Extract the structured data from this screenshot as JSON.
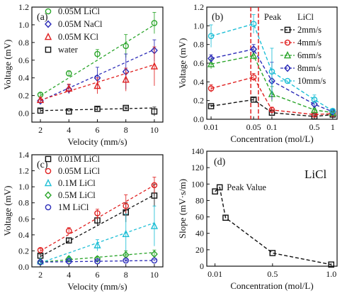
{
  "figure": {
    "panels": [
      {
        "label": "(a)",
        "chart_data": {
          "type": "scatter",
          "trendlines": "linear-dashed",
          "xlabel": "Velocity (mm/s)",
          "ylabel": "Voltage (mV)",
          "xlim": [
            1.4,
            10.6
          ],
          "ylim": [
            -0.1,
            1.2
          ],
          "xticks": [
            2,
            4,
            6,
            8,
            10
          ],
          "yticks": [
            0.0,
            0.2,
            0.4,
            0.6,
            0.8,
            1.0,
            1.2
          ],
          "legend_position": "top-left",
          "series": [
            {
              "name": "0.05M LiCl",
              "color": "#2aa52a",
              "marker": "circle",
              "x": [
                2,
                4,
                6,
                8,
                10
              ],
              "y": [
                0.21,
                0.45,
                0.67,
                0.76,
                1.02
              ],
              "err": [
                0.02,
                0.03,
                0.05,
                0.13,
                0.12
              ],
              "fit": [
                [
                  2,
                  0.2
                ],
                [
                  10,
                  1.0
                ]
              ]
            },
            {
              "name": "0.05M NaCl",
              "color": "#2b2bb8",
              "marker": "diamond",
              "x": [
                2,
                4,
                6,
                8,
                10
              ],
              "y": [
                0.14,
                0.27,
                0.4,
                0.47,
                0.71
              ],
              "err": [
                0.02,
                0.05,
                0.12,
                0.2,
                0.12
              ],
              "fit": [
                [
                  2,
                  0.14
                ],
                [
                  10,
                  0.72
                ]
              ]
            },
            {
              "name": "0.05M KCl",
              "color": "#e02020",
              "marker": "triangle",
              "x": [
                2,
                4,
                6,
                8,
                10
              ],
              "y": [
                0.15,
                0.28,
                0.31,
                0.38,
                0.53
              ],
              "err": [
                0.03,
                0.05,
                0.09,
                0.13,
                0.22
              ],
              "fit": [
                [
                  2,
                  0.15
                ],
                [
                  10,
                  0.55
                ]
              ]
            },
            {
              "name": "water",
              "color": "#111111",
              "marker": "square",
              "x": [
                2,
                4,
                6,
                8,
                10
              ],
              "y": [
                0.03,
                0.02,
                0.05,
                0.06,
                0.02
              ],
              "err": [
                0.02,
                0.01,
                0.02,
                0.01,
                0.05
              ],
              "fit": [
                [
                  2,
                  0.03
                ],
                [
                  10,
                  0.06
                ]
              ]
            }
          ]
        }
      },
      {
        "label": "(b)",
        "chart_data": {
          "type": "line",
          "xscale": "log",
          "title_legend": "LiCl",
          "xlabel": "Concentration (mol/L)",
          "ylabel": "Voltage (mV)",
          "xlim": [
            0.0085,
            1.18
          ],
          "ylim": [
            0.0,
            1.2
          ],
          "xticks": [
            0.01,
            0.05,
            0.1,
            0.5,
            1
          ],
          "xtick_labels": [
            "0.01",
            "0.05",
            "0.1",
            "0.5",
            "1"
          ],
          "yticks": [
            0.0,
            0.2,
            0.4,
            0.6,
            0.8,
            1.0,
            1.2
          ],
          "legend_position": "top-right",
          "annotation": {
            "text": "Peak",
            "x_range": [
              0.045,
              0.06
            ],
            "color": "#e02020"
          },
          "series": [
            {
              "name": "2mm/s",
              "color": "#111111",
              "marker": "square",
              "x": [
                0.01,
                0.05,
                0.1,
                0.5,
                1
              ],
              "y": [
                0.14,
                0.21,
                0.07,
                0.03,
                0.05
              ],
              "err": [
                0.01,
                0.02,
                0.02,
                0.01,
                0.01
              ]
            },
            {
              "name": "4mm/s",
              "color": "#e02020",
              "marker": "circle",
              "x": [
                0.01,
                0.05,
                0.1,
                0.5,
                1
              ],
              "y": [
                0.33,
                0.45,
                0.1,
                0.05,
                0.06
              ],
              "err": [
                0.04,
                0.04,
                0.03,
                0.02,
                0.01
              ]
            },
            {
              "name": "6mm/s",
              "color": "#2aa52a",
              "marker": "triangle",
              "x": [
                0.01,
                0.05,
                0.1,
                0.5,
                1
              ],
              "y": [
                0.59,
                0.68,
                0.27,
                0.1,
                0.07
              ],
              "err": [
                0.05,
                0.04,
                0.08,
                0.02,
                0.01
              ]
            },
            {
              "name": "8mm/s",
              "color": "#2b2bb8",
              "marker": "diamond",
              "x": [
                0.01,
                0.05,
                0.1,
                0.5,
                1
              ],
              "y": [
                0.65,
                0.75,
                0.41,
                0.16,
                0.08
              ],
              "err": [
                0.04,
                0.05,
                0.2,
                0.03,
                0.02
              ]
            },
            {
              "name": "10mm/s",
              "color": "#1fbfd6",
              "marker": "circle",
              "x": [
                0.01,
                0.05,
                0.1,
                0.5,
                1
              ],
              "y": [
                0.89,
                1.02,
                0.51,
                0.21,
                0.09
              ],
              "err": [
                0.12,
                0.1,
                0.25,
                0.05,
                0.02
              ]
            }
          ]
        }
      },
      {
        "label": "(c)",
        "chart_data": {
          "type": "scatter",
          "trendlines": "linear-dashed",
          "xlabel": "Velocity (mm/s)",
          "ylabel": "Voltage (mV)",
          "xlim": [
            1.4,
            10.6
          ],
          "ylim": [
            0.0,
            1.4
          ],
          "xticks": [
            2,
            4,
            6,
            8,
            10
          ],
          "yticks": [
            0.0,
            0.2,
            0.4,
            0.6,
            0.8,
            1.0,
            1.2,
            1.4
          ],
          "legend_position": "top-left",
          "series": [
            {
              "name": "0.01M LiCl",
              "color": "#111111",
              "marker": "square",
              "x": [
                2,
                4,
                6,
                8,
                10
              ],
              "y": [
                0.14,
                0.33,
                0.58,
                0.68,
                0.89
              ],
              "err": [
                0.02,
                0.03,
                0.06,
                0.12,
                0.14
              ],
              "fit": [
                [
                  2,
                  0.13
                ],
                [
                  10,
                  0.9
                ]
              ]
            },
            {
              "name": "0.05M LiCl",
              "color": "#e02020",
              "marker": "circle",
              "x": [
                2,
                4,
                6,
                8,
                10
              ],
              "y": [
                0.21,
                0.45,
                0.67,
                0.76,
                1.02
              ],
              "err": [
                0.02,
                0.04,
                0.05,
                0.14,
                0.1
              ],
              "fit": [
                [
                  2,
                  0.2
                ],
                [
                  10,
                  1.02
                ]
              ]
            },
            {
              "name": "0.1M LiCl",
              "color": "#1fbfd6",
              "marker": "triangle",
              "x": [
                2,
                4,
                6,
                8,
                10
              ],
              "y": [
                0.07,
                0.1,
                0.27,
                0.41,
                0.51
              ],
              "err": [
                0.01,
                0.03,
                0.07,
                0.25,
                0.25
              ],
              "fit": [
                [
                  2,
                  0.05
                ],
                [
                  10,
                  0.55
                ]
              ]
            },
            {
              "name": "0.5M LiCl",
              "color": "#2aa52a",
              "marker": "diamond",
              "x": [
                2,
                4,
                6,
                8,
                10
              ],
              "y": [
                0.06,
                0.1,
                0.1,
                0.15,
                0.16
              ],
              "err": [
                0.01,
                0.02,
                0.03,
                0.05,
                0.05
              ],
              "fit": [
                [
                  2,
                  0.06
                ],
                [
                  10,
                  0.18
                ]
              ]
            },
            {
              "name": "1M LiCl",
              "color": "#2b2bb8",
              "marker": "circle",
              "x": [
                2,
                4,
                6,
                8,
                10
              ],
              "y": [
                0.06,
                0.07,
                0.07,
                0.08,
                0.08
              ],
              "err": [
                0.01,
                0.01,
                0.01,
                0.01,
                0.01
              ],
              "fit": [
                [
                  2,
                  0.06
                ],
                [
                  10,
                  0.08
                ]
              ]
            }
          ]
        }
      },
      {
        "label": "(d)",
        "chart_data": {
          "type": "line",
          "inset_label": "LiCl",
          "xlabel": "Concentration (mol/L)",
          "ylabel": "Slope (mV·s/m)",
          "xlim": [
            -0.06,
            1.05
          ],
          "ylim": [
            0,
            140
          ],
          "xticks": [
            0.01,
            0.5,
            1.0
          ],
          "xtick_labels": [
            "0.01",
            "0.5",
            "1.0"
          ],
          "yticks": [
            0,
            20,
            40,
            60,
            80,
            100,
            120,
            140
          ],
          "annotation": {
            "text": "Peak Value",
            "x": 0.05,
            "y": 96
          },
          "series": [
            {
              "name": "LiCl",
              "color": "#111111",
              "marker": "square",
              "x": [
                0.01,
                0.05,
                0.1,
                0.5,
                1.0
              ],
              "y": [
                91,
                96,
                59,
                16,
                2
              ]
            }
          ]
        }
      }
    ]
  }
}
